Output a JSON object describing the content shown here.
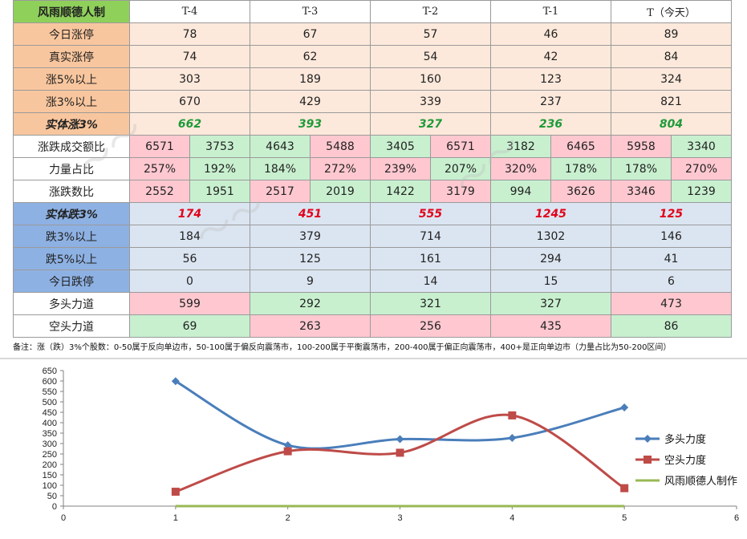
{
  "table": {
    "corner": "风雨顺德人制",
    "headers": [
      "T-4",
      "T-3",
      "T-2",
      "T-1",
      "T（今天）"
    ],
    "rows": [
      {
        "label": "今日涨停",
        "values": [
          "78",
          "67",
          "57",
          "46",
          "89"
        ]
      },
      {
        "label": "真实涨停",
        "values": [
          "74",
          "62",
          "54",
          "42",
          "84"
        ]
      },
      {
        "label": "涨5%以上",
        "values": [
          "303",
          "189",
          "160",
          "123",
          "324"
        ]
      },
      {
        "label": "涨3%以上",
        "values": [
          "670",
          "429",
          "339",
          "237",
          "821"
        ]
      },
      {
        "label": "实体涨3%",
        "values": [
          "662",
          "393",
          "327",
          "236",
          "804"
        ]
      }
    ],
    "pair_rows": [
      {
        "label": "涨跌成交额比",
        "pairs": [
          [
            "6571",
            "3753"
          ],
          [
            "4643",
            "5488"
          ],
          [
            "3405",
            "6571"
          ],
          [
            "3182",
            "6465"
          ],
          [
            "5958",
            "3340"
          ]
        ]
      },
      {
        "label": "力量占比",
        "pairs": [
          [
            "257%",
            "192%"
          ],
          [
            "184%",
            "272%"
          ],
          [
            "239%",
            "207%"
          ],
          [
            "320%",
            "178%"
          ],
          [
            "178%",
            "270%"
          ]
        ]
      },
      {
        "label": "涨跌数比",
        "pairs": [
          [
            "2552",
            "1951"
          ],
          [
            "2517",
            "2019"
          ],
          [
            "1422",
            "3179"
          ],
          [
            "994",
            "3626"
          ],
          [
            "3346",
            "1239"
          ]
        ]
      }
    ],
    "fall_rows": [
      {
        "label": "实体跌3%",
        "values": [
          "174",
          "451",
          "555",
          "1245",
          "125"
        ]
      },
      {
        "label": "跌3%以上",
        "values": [
          "184",
          "379",
          "714",
          "1302",
          "146"
        ]
      },
      {
        "label": "跌5%以上",
        "values": [
          "56",
          "125",
          "161",
          "294",
          "41"
        ]
      },
      {
        "label": "今日跌停",
        "values": [
          "0",
          "9",
          "14",
          "15",
          "6"
        ]
      }
    ],
    "force_rows": [
      {
        "label": "多头力道",
        "values": [
          "599",
          "292",
          "321",
          "327",
          "473"
        ]
      },
      {
        "label": "空头力道",
        "values": [
          "69",
          "263",
          "256",
          "435",
          "86"
        ]
      }
    ]
  },
  "note": "备注：涨（跌）3%个股数：0-50属于反向单边市，50-100属于偏反向震荡市，100-200属于平衡震荡市，200-400属于偏正向震荡市，400+是正向单边市（力量占比为50-200区间）",
  "chart_data": {
    "type": "line",
    "x_ticks": [
      "0",
      "1",
      "2",
      "3",
      "4",
      "5",
      "6"
    ],
    "y_ticks": [
      "0",
      "50",
      "100",
      "150",
      "200",
      "250",
      "300",
      "350",
      "400",
      "450",
      "500",
      "550",
      "600",
      "650"
    ],
    "xlim": [
      0,
      6
    ],
    "ylim": [
      0,
      650
    ],
    "smooth": true,
    "grid": false,
    "legend_position": "right",
    "series": [
      {
        "name": "多头力度",
        "color": "#4a7ebb",
        "marker": "diamond",
        "x": [
          1,
          2,
          3,
          4,
          5
        ],
        "values": [
          599,
          292,
          321,
          327,
          473
        ]
      },
      {
        "name": "空头力度",
        "color": "#be4b48",
        "marker": "square",
        "x": [
          1,
          2,
          3,
          4,
          5
        ],
        "values": [
          69,
          263,
          256,
          435,
          86
        ]
      },
      {
        "name": "风雨顺德人制作",
        "color": "#98b954",
        "marker": "none",
        "x": [
          1,
          2,
          3,
          4,
          5
        ],
        "values": [
          0,
          0,
          0,
          0,
          0
        ]
      }
    ]
  },
  "colors": {
    "positive": "#1e9a3a",
    "negative": "#e2001a",
    "pink": "#ffc8d0",
    "mint": "#c8f0cf"
  }
}
